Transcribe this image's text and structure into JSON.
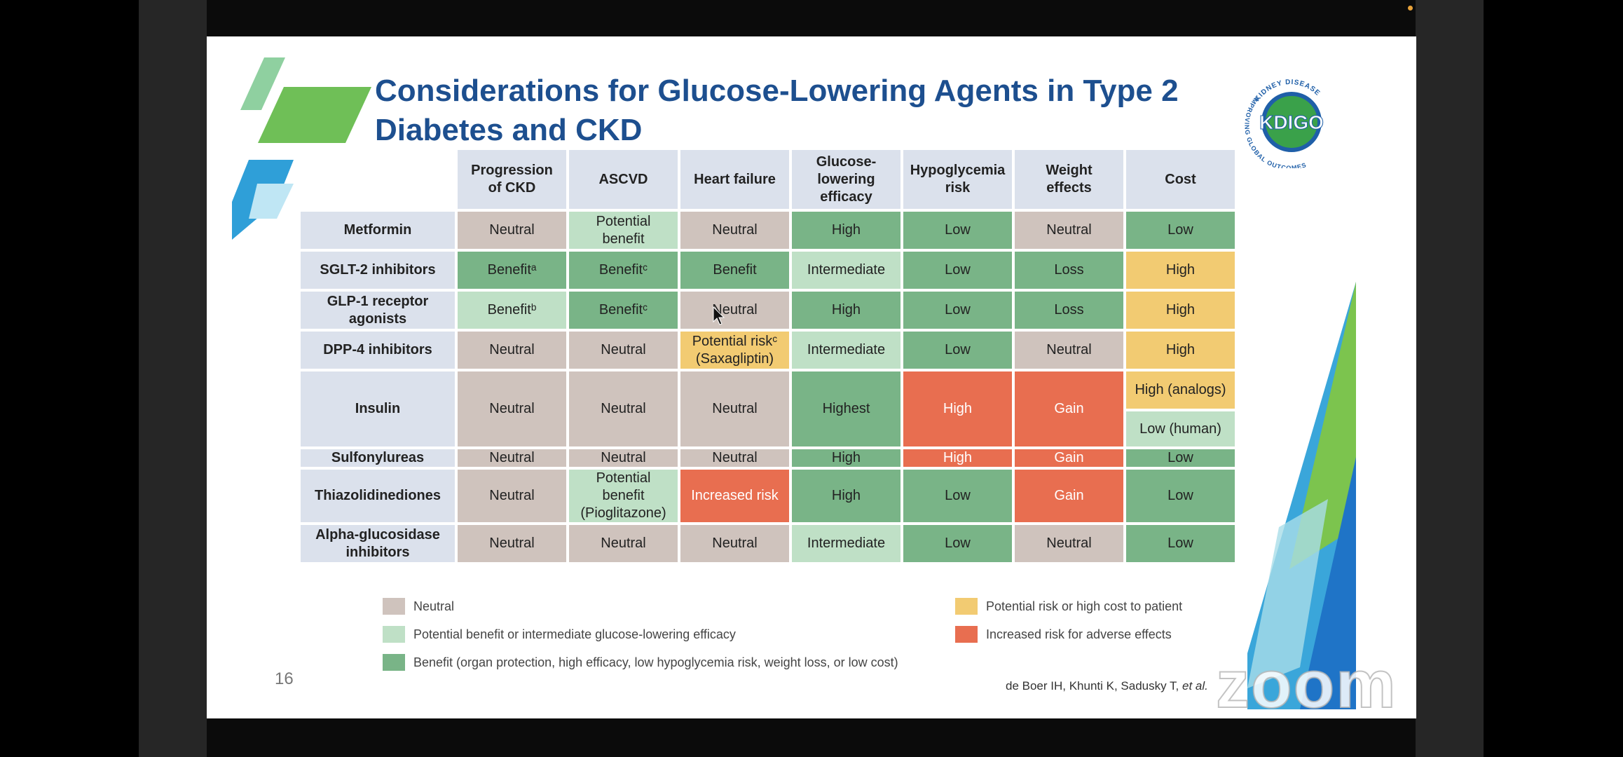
{
  "slide": {
    "title_line1": "Considerations for Glucose-Lowering Agents in Type 2",
    "title_line2": "Diabetes and CKD",
    "page_number": "16",
    "citation": "de Boer IH, Khunti K, Sadusky T,",
    "citation_etal": "et al."
  },
  "logo": {
    "top_text": "KIDNEY DISEASE",
    "side_text": "IMPROVING GLOBAL OUTCOMES",
    "mark": "KDIGO"
  },
  "table": {
    "columns": [
      "Progression of CKD",
      "ASCVD",
      "Heart failure",
      "Glucose-lowering efficacy",
      "Hypoglycemia risk",
      "Weight effects",
      "Cost"
    ],
    "col_lines": [
      [
        "Progression",
        "of CKD"
      ],
      [
        "ASCVD"
      ],
      [
        "Heart failure"
      ],
      [
        "Glucose-",
        "lowering",
        "efficacy"
      ],
      [
        "Hypoglycemia",
        "risk"
      ],
      [
        "Weight",
        "effects"
      ],
      [
        "Cost"
      ]
    ],
    "rows": [
      {
        "agent": [
          "Metformin"
        ],
        "cells": [
          {
            "t": [
              "Neutral"
            ],
            "c": "neutral"
          },
          {
            "t": [
              "Potential",
              "benefit"
            ],
            "c": "lgreen"
          },
          {
            "t": [
              "Neutral"
            ],
            "c": "neutral"
          },
          {
            "t": [
              "High"
            ],
            "c": "green"
          },
          {
            "t": [
              "Low"
            ],
            "c": "green"
          },
          {
            "t": [
              "Neutral"
            ],
            "c": "neutral"
          },
          {
            "t": [
              "Low"
            ],
            "c": "green"
          }
        ]
      },
      {
        "agent": [
          "SGLT-2 inhibitors"
        ],
        "cells": [
          {
            "t": [
              "Benefitᵃ"
            ],
            "c": "green"
          },
          {
            "t": [
              "Benefitᶜ"
            ],
            "c": "green"
          },
          {
            "t": [
              "Benefit"
            ],
            "c": "green"
          },
          {
            "t": [
              "Intermediate"
            ],
            "c": "lgreen"
          },
          {
            "t": [
              "Low"
            ],
            "c": "green"
          },
          {
            "t": [
              "Loss"
            ],
            "c": "green"
          },
          {
            "t": [
              "High"
            ],
            "c": "yellow"
          }
        ]
      },
      {
        "agent": [
          "GLP-1 receptor",
          "agonists"
        ],
        "cells": [
          {
            "t": [
              "Benefitᵇ"
            ],
            "c": "lgreen"
          },
          {
            "t": [
              "Benefitᶜ"
            ],
            "c": "green"
          },
          {
            "t": [
              "Neutral"
            ],
            "c": "neutral"
          },
          {
            "t": [
              "High"
            ],
            "c": "green"
          },
          {
            "t": [
              "Low"
            ],
            "c": "green"
          },
          {
            "t": [
              "Loss"
            ],
            "c": "green"
          },
          {
            "t": [
              "High"
            ],
            "c": "yellow"
          }
        ]
      },
      {
        "agent": [
          "DPP-4 inhibitors"
        ],
        "cells": [
          {
            "t": [
              "Neutral"
            ],
            "c": "neutral"
          },
          {
            "t": [
              "Neutral"
            ],
            "c": "neutral"
          },
          {
            "t": [
              "Potential riskᶜ",
              "(Saxagliptin)"
            ],
            "c": "yellow"
          },
          {
            "t": [
              "Intermediate"
            ],
            "c": "lgreen"
          },
          {
            "t": [
              "Low"
            ],
            "c": "green"
          },
          {
            "t": [
              "Neutral"
            ],
            "c": "neutral"
          },
          {
            "t": [
              "High"
            ],
            "c": "yellow"
          }
        ]
      },
      {
        "agent": [
          "Insulin"
        ],
        "cells": [
          {
            "t": [
              "Neutral"
            ],
            "c": "neutral"
          },
          {
            "t": [
              "Neutral"
            ],
            "c": "neutral"
          },
          {
            "t": [
              "Neutral"
            ],
            "c": "neutral"
          },
          {
            "t": [
              "Highest"
            ],
            "c": "green"
          },
          {
            "t": [
              "High"
            ],
            "c": "red"
          },
          {
            "t": [
              "Gain"
            ],
            "c": "red"
          },
          {
            "t": [
              "High (analogs)"
            ],
            "c": "yellow"
          }
        ]
      },
      {
        "agent": [
          "Sulfonylureas"
        ],
        "cells": [
          {
            "t": [
              "Neutral"
            ],
            "c": "neutral"
          },
          {
            "t": [
              "Neutral"
            ],
            "c": "neutral"
          },
          {
            "t": [
              "Neutral"
            ],
            "c": "neutral"
          },
          {
            "t": [
              "High"
            ],
            "c": "green"
          },
          {
            "t": [
              "High"
            ],
            "c": "red"
          },
          {
            "t": [
              "Gain"
            ],
            "c": "red"
          },
          {
            "t": [
              "Low"
            ],
            "c": "green"
          }
        ]
      },
      {
        "agent": [
          "Thiazolidinediones"
        ],
        "cells": [
          {
            "t": [
              "Neutral"
            ],
            "c": "neutral"
          },
          {
            "t": [
              "Potential",
              "benefit",
              "(Pioglitazone)"
            ],
            "c": "lgreen"
          },
          {
            "t": [
              "Increased risk"
            ],
            "c": "red"
          },
          {
            "t": [
              "High"
            ],
            "c": "green"
          },
          {
            "t": [
              "Low"
            ],
            "c": "green"
          },
          {
            "t": [
              "Gain"
            ],
            "c": "red"
          },
          {
            "t": [
              "Low"
            ],
            "c": "green"
          }
        ]
      },
      {
        "agent": [
          "Alpha-glucosidase",
          "inhibitors"
        ],
        "cells": [
          {
            "t": [
              "Neutral"
            ],
            "c": "neutral"
          },
          {
            "t": [
              "Neutral"
            ],
            "c": "neutral"
          },
          {
            "t": [
              "Neutral"
            ],
            "c": "neutral"
          },
          {
            "t": [
              "Intermediate"
            ],
            "c": "lgreen"
          },
          {
            "t": [
              "Low"
            ],
            "c": "green"
          },
          {
            "t": [
              "Neutral"
            ],
            "c": "neutral"
          },
          {
            "t": [
              "Low"
            ],
            "c": "green"
          }
        ]
      }
    ],
    "insulin_cost_second": {
      "t": [
        "Low (human)"
      ],
      "c": "lgreen"
    }
  },
  "legend": {
    "neutral": "Neutral",
    "lgreen": "Potential benefit or intermediate glucose-lowering efficacy",
    "green": "Benefit (organ protection, high efficacy, low hypoglycemia risk, weight loss, or low cost)",
    "yellow": "Potential risk or high cost to patient",
    "red": "Increased risk for adverse effects"
  },
  "colors": {
    "neutral": "#cfc3bd",
    "lgreen": "#bfe0c6",
    "green": "#79b487",
    "yellow": "#f2cb72",
    "red": "#e86e50",
    "title": "#1d4f8f"
  },
  "overlay": {
    "watermark": "zoom"
  }
}
